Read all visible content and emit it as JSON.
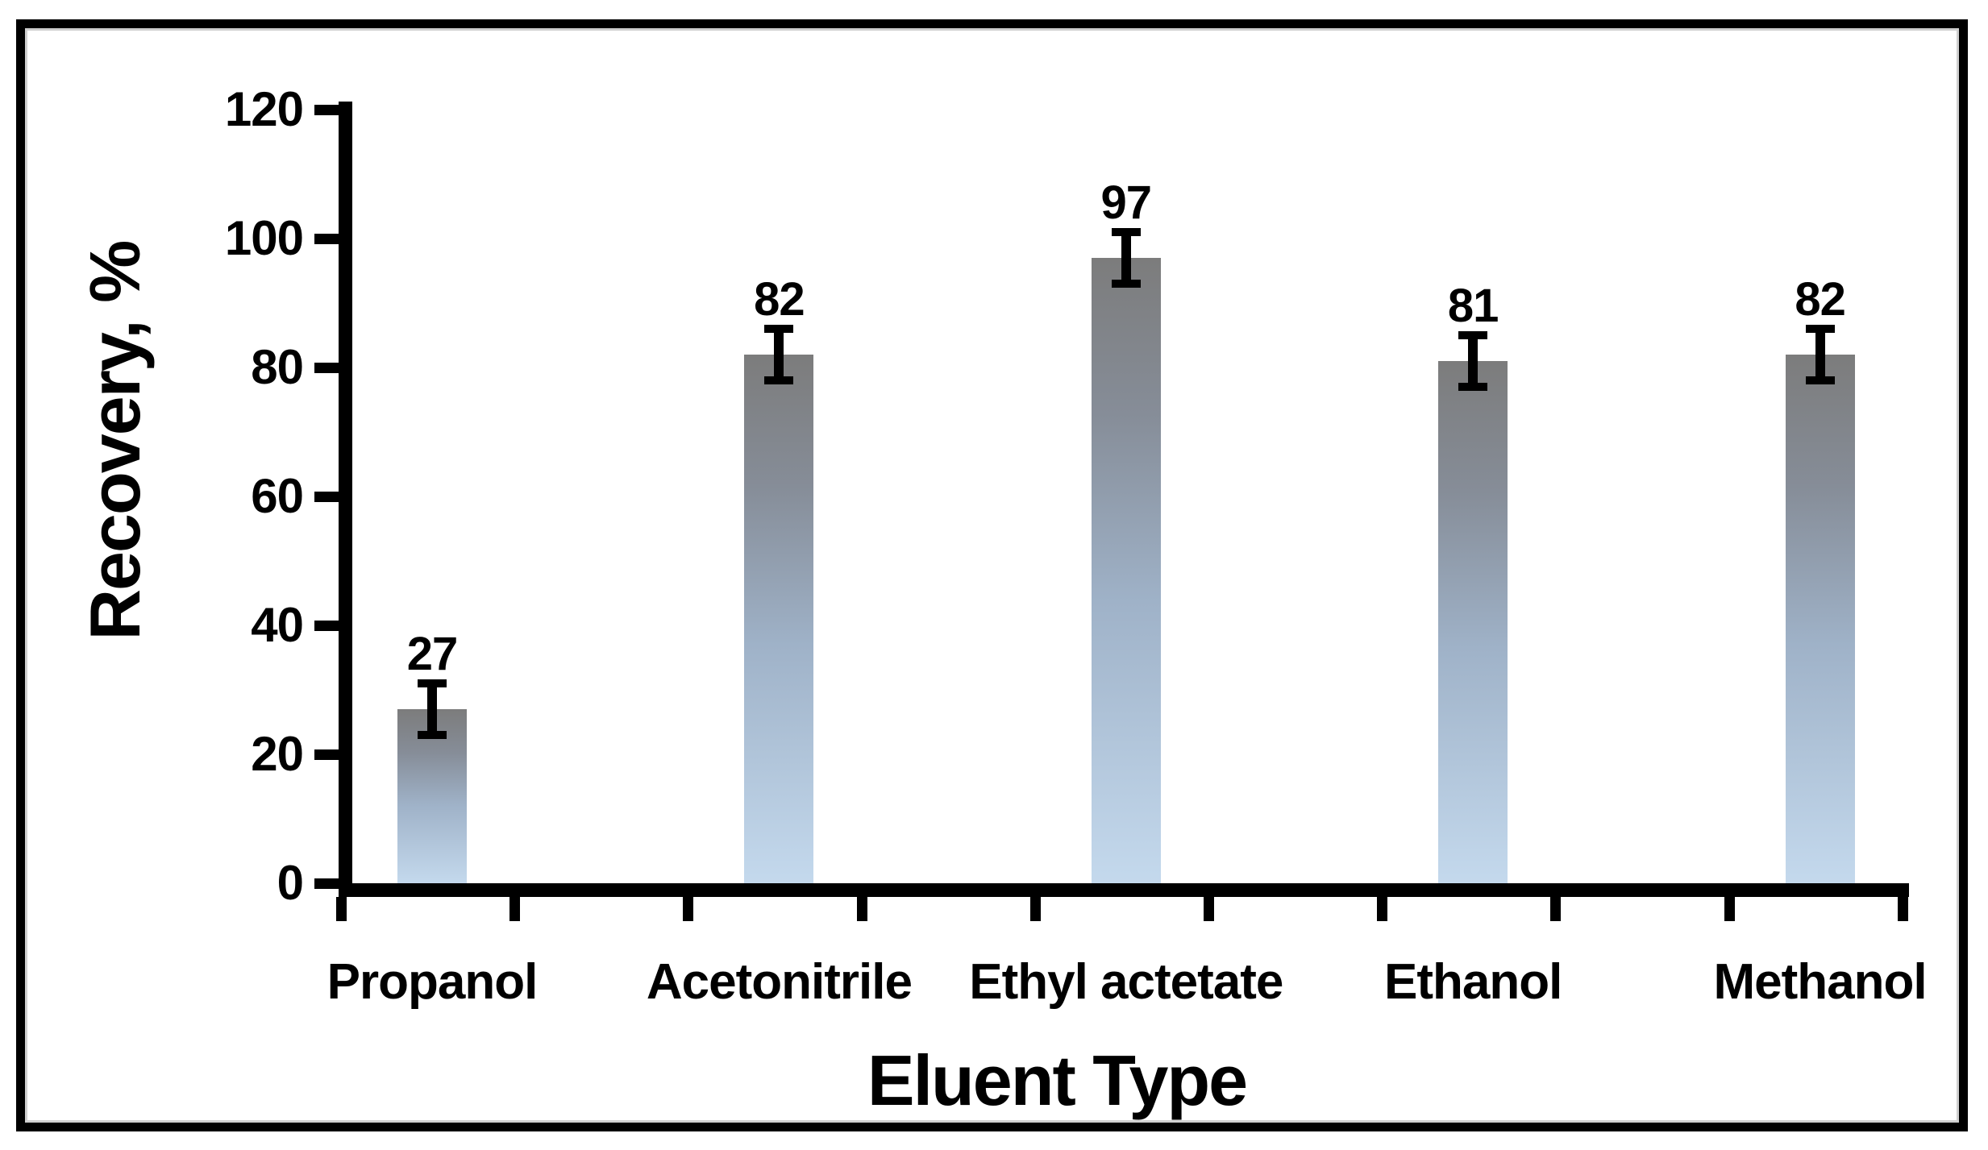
{
  "figure": {
    "background": "#ffffff",
    "frame_color": "#000000"
  },
  "chart_data": {
    "type": "bar",
    "title": "",
    "xlabel": "Eluent Type",
    "ylabel": "Recovery, %",
    "categories": [
      "Propanol",
      "Acetonitrile",
      "Ethyl actetate",
      "Ethanol",
      "Methanol"
    ],
    "values": [
      27,
      82,
      97,
      81,
      82
    ],
    "data_labels": [
      "27",
      "82",
      "97",
      "81",
      "82"
    ],
    "error_bars": [
      4,
      4,
      4,
      4,
      4
    ],
    "yticks": [
      0,
      20,
      40,
      60,
      80,
      100,
      120
    ],
    "ytick_labels": [
      "0",
      "20",
      "40",
      "60",
      "80",
      "100",
      "120"
    ],
    "ylim": [
      0,
      120
    ],
    "grid": "off",
    "legend": "none",
    "axis_color": "#000000",
    "bar_gradient_top": "#7c7c7c",
    "bar_gradient_mid": "#9fb2c8",
    "bar_gradient_bottom": "#c4d9ed"
  }
}
